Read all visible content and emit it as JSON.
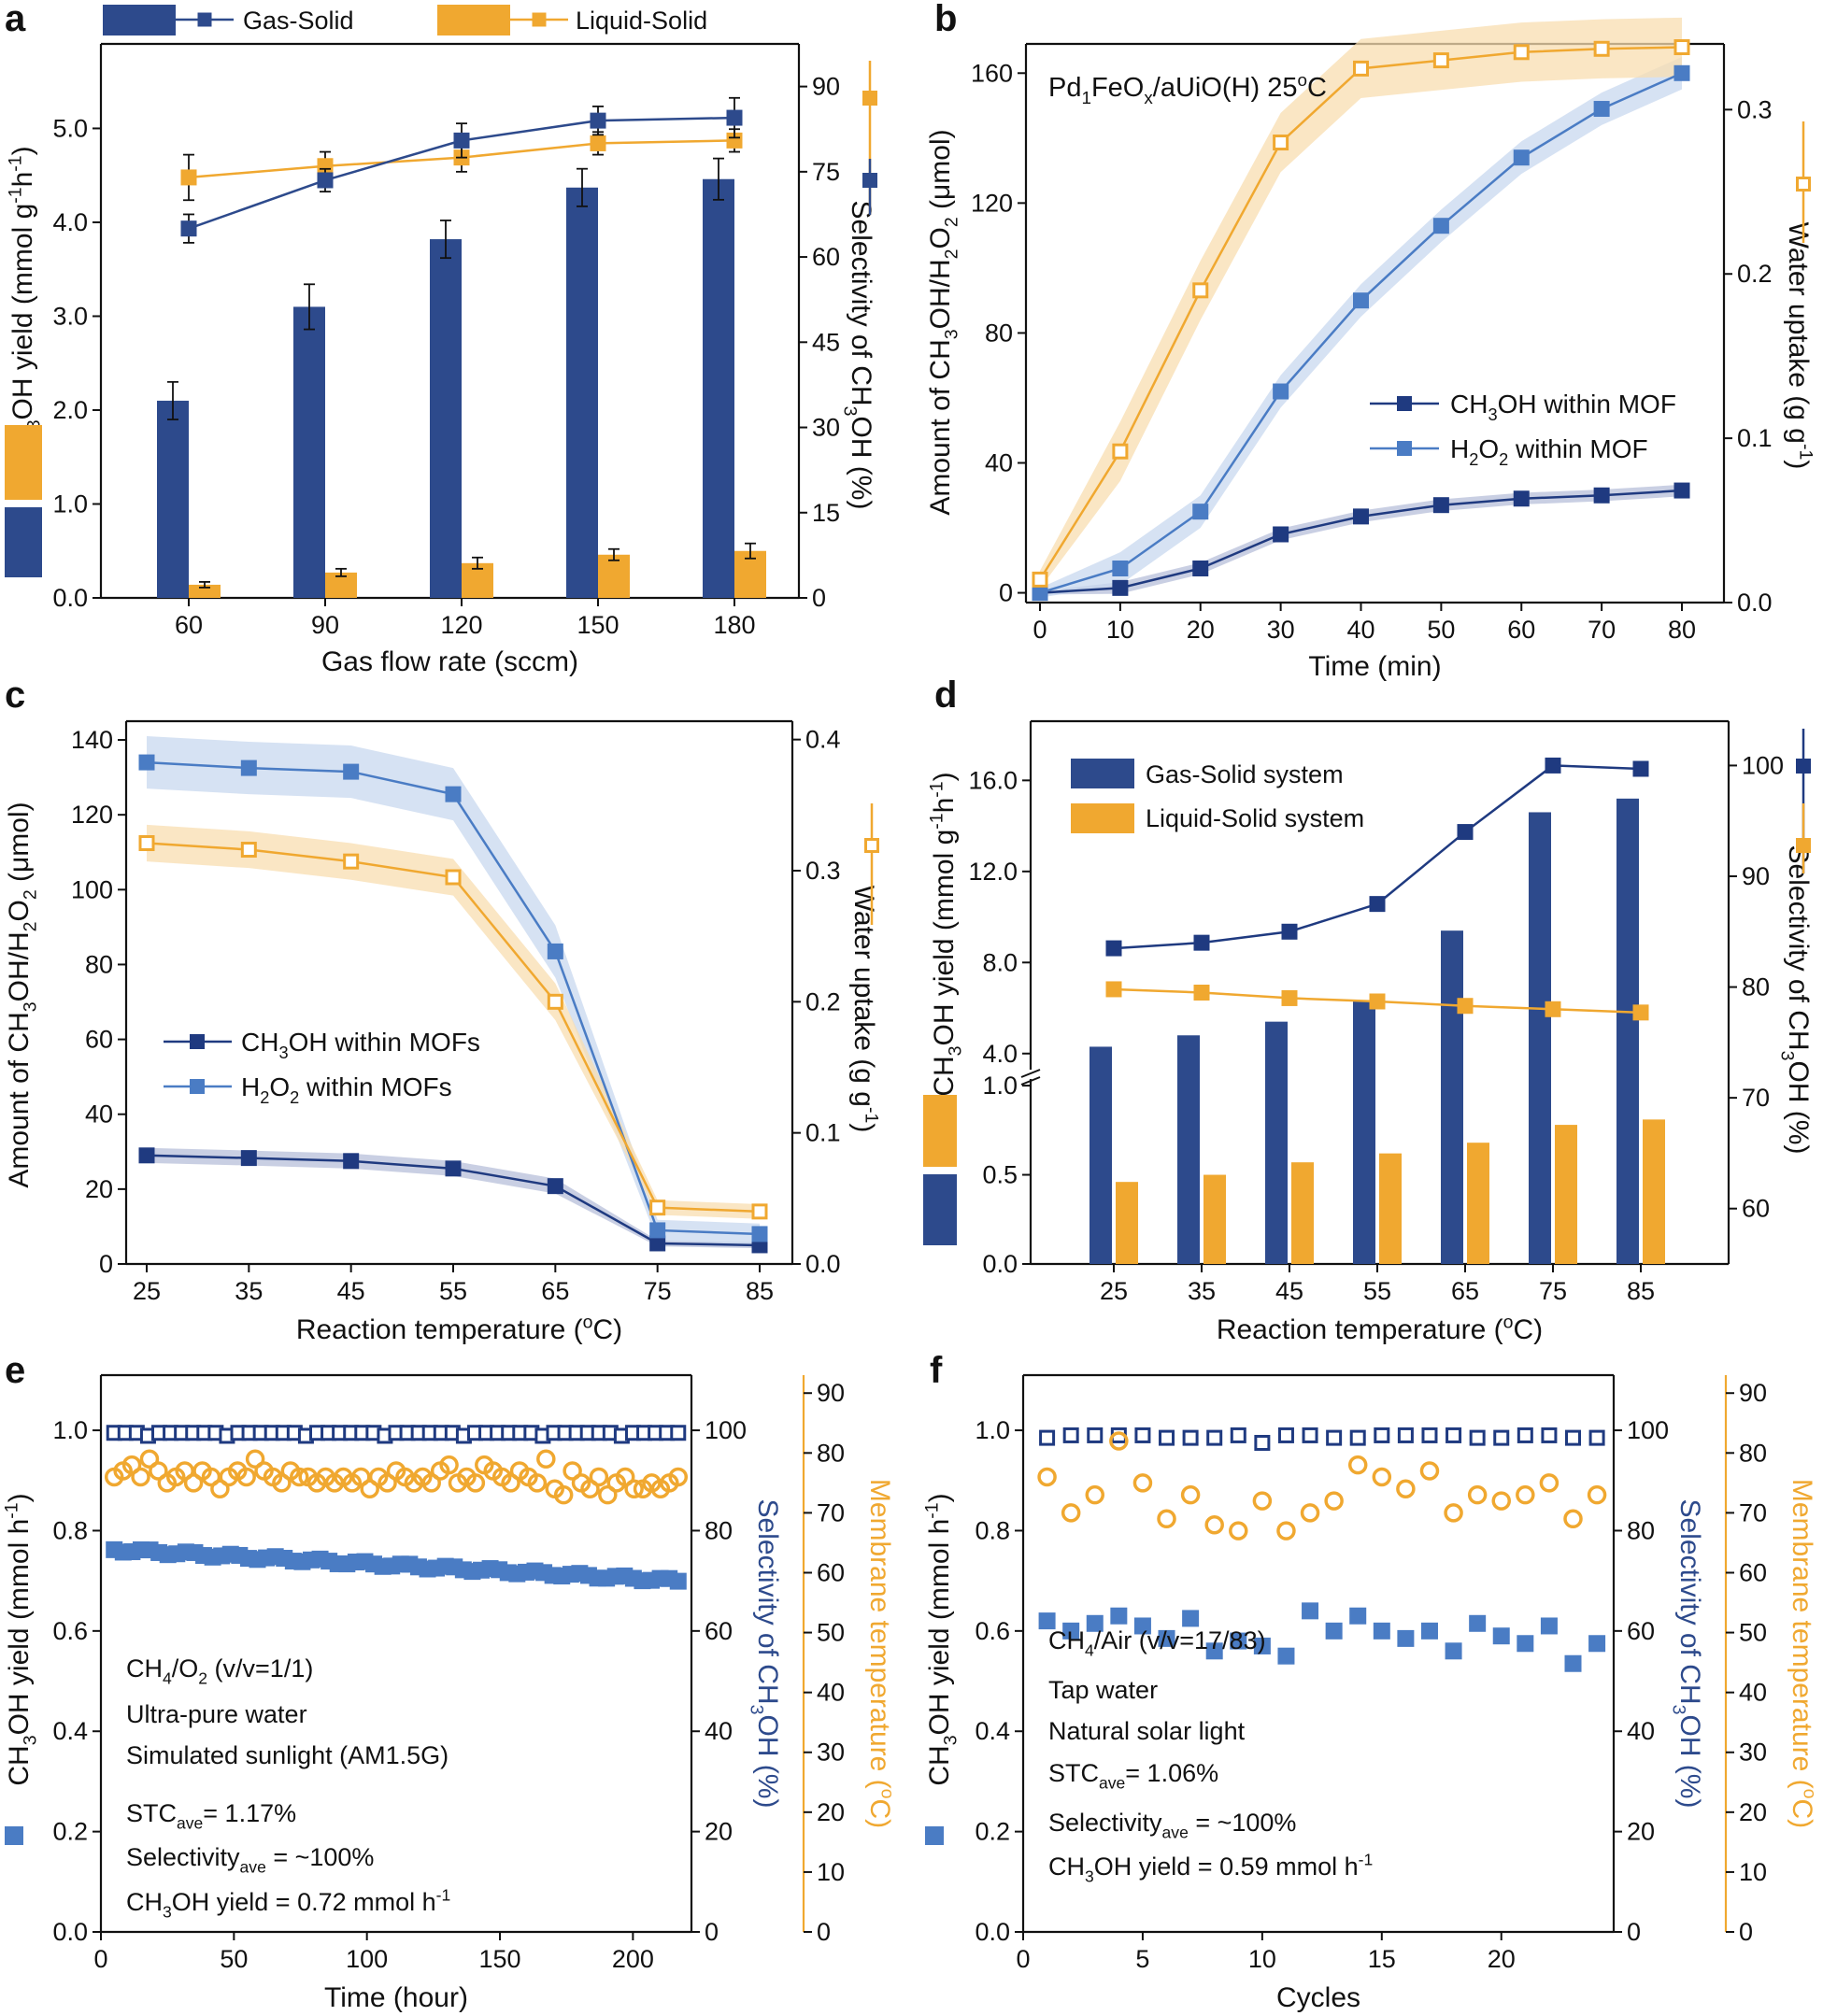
{
  "colors": {
    "navy": "#2d4a8c",
    "navy_dark": "#1f3a80",
    "blue": "#4a7cc4",
    "blue_band": "#c8d8ef",
    "orange": "#f0a830",
    "orange_band": "#f8ddb0"
  },
  "chart_data": [
    {
      "panel": "a",
      "type": "bar+line",
      "legend": [
        "Gas-Solid",
        "Liquid-Solid"
      ],
      "xlabel": "Gas flow rate (sccm)",
      "ylabel": [
        "CH",
        "3",
        "OH yield (mmol g",
        "-1",
        "h",
        "-1",
        ")"
      ],
      "y2label": [
        "Selectivity of CH",
        "3",
        "OH (%)"
      ],
      "categories": [
        "60",
        "90",
        "120",
        "150",
        "180"
      ],
      "ylim": [
        0,
        5.9
      ],
      "yticks": [
        "0.0",
        "1.0",
        "2.0",
        "3.0",
        "4.0",
        "5.0"
      ],
      "y2lim": [
        0,
        97.5
      ],
      "y2ticks": [
        "0",
        "15",
        "30",
        "45",
        "60",
        "75",
        "90"
      ],
      "series": [
        {
          "name": "Gas-Solid yield",
          "kind": "bar",
          "values": [
            2.1,
            3.1,
            3.82,
            4.37,
            4.46
          ],
          "err": [
            0.2,
            0.24,
            0.2,
            0.2,
            0.22
          ]
        },
        {
          "name": "Liquid-Solid yield",
          "kind": "bar",
          "values": [
            0.14,
            0.27,
            0.37,
            0.46,
            0.5
          ],
          "err": [
            0.03,
            0.04,
            0.06,
            0.06,
            0.08
          ]
        },
        {
          "name": "Gas-Solid selectivity",
          "kind": "line",
          "values": [
            65,
            73.5,
            80.5,
            84,
            84.5
          ],
          "err": [
            2.5,
            2,
            3,
            2.5,
            3.5
          ]
        },
        {
          "name": "Liquid-Solid selectivity",
          "kind": "line",
          "values": [
            74,
            76,
            77.5,
            80,
            80.5
          ],
          "err": [
            4,
            2.5,
            2.5,
            2,
            2
          ]
        }
      ]
    },
    {
      "panel": "b",
      "type": "line",
      "annotation": "Pd1FeOx/aUiO(H)  25°C",
      "xlabel": "Time (min)",
      "ylabel": [
        "Amount of CH",
        "3",
        "OH/H",
        "2",
        "O",
        "2",
        " (μmol)"
      ],
      "y2label": [
        "Water uptake (g g",
        "-1",
        ")"
      ],
      "x": [
        0,
        10,
        20,
        30,
        40,
        50,
        60,
        70,
        80
      ],
      "xticks": [
        "0",
        "10",
        "20",
        "30",
        "40",
        "50",
        "60",
        "70",
        "80"
      ],
      "ylim": [
        -3,
        169
      ],
      "yticks": [
        "0",
        "40",
        "80",
        "120",
        "160"
      ],
      "y2lim": [
        0,
        0.34
      ],
      "y2ticks": [
        "0.0",
        "0.1",
        "0.2",
        "0.3"
      ],
      "legend": [
        "CH3OH within MOF",
        "H2O2 within MOF"
      ],
      "series": [
        {
          "name": "CH3OH within MOF",
          "values": [
            0,
            1.5,
            7.5,
            18,
            23.5,
            27,
            29,
            30,
            31.5
          ],
          "band": 1.8
        },
        {
          "name": "H2O2 within MOF",
          "values": [
            0,
            7.5,
            25,
            62,
            90,
            113,
            134,
            149,
            160
          ],
          "band": 5
        },
        {
          "name": "Water uptake",
          "axis": "y2",
          "values": [
            0.014,
            0.092,
            0.19,
            0.28,
            0.325,
            0.33,
            0.335,
            0.337,
            0.338
          ],
          "band": 0.018
        }
      ]
    },
    {
      "panel": "c",
      "type": "line",
      "xlabel": "Reaction temperature (°C)",
      "ylabel": [
        "Amount of CH",
        "3",
        "OH/H",
        "2",
        "O",
        "2",
        " (μmol)"
      ],
      "y2label": [
        "Water uptake (g g",
        "-1",
        ")"
      ],
      "x": [
        25,
        35,
        45,
        55,
        65,
        75,
        85
      ],
      "xticks": [
        "25",
        "35",
        "45",
        "55",
        "65",
        "75",
        "85"
      ],
      "ylim": [
        0,
        145
      ],
      "yticks": [
        "0",
        "20",
        "40",
        "60",
        "80",
        "100",
        "120",
        "140"
      ],
      "y2lim": [
        0,
        0.414
      ],
      "y2ticks": [
        "0.0",
        "0.1",
        "0.2",
        "0.3",
        "0.4"
      ],
      "legend": [
        "CH3OH within MOFs",
        "H2O2 within MOFs"
      ],
      "series": [
        {
          "name": "CH3OH within MOFs",
          "values": [
            29,
            28.3,
            27.5,
            25.5,
            20.8,
            5.5,
            5
          ],
          "band": 2
        },
        {
          "name": "H2O2 within MOFs",
          "values": [
            134,
            132.5,
            131.5,
            125.5,
            83.5,
            9,
            8
          ],
          "band": 7
        },
        {
          "name": "Water uptake",
          "axis": "y2",
          "values": [
            0.321,
            0.316,
            0.307,
            0.295,
            0.2,
            0.043,
            0.04
          ],
          "band": 0.014
        }
      ]
    },
    {
      "panel": "d",
      "type": "bar+line",
      "legend": [
        "Gas-Solid system",
        "Liquid-Solid system"
      ],
      "xlabel": "Reaction temperature (°C)",
      "ylabel": [
        "CH",
        "3",
        "OH yield (mmol g",
        "-1",
        "h",
        "-1",
        ")"
      ],
      "y2label": [
        "Selectivity of CH",
        "3",
        "OH (%)"
      ],
      "categories": [
        "25",
        "35",
        "45",
        "55",
        "65",
        "75",
        "85"
      ],
      "ylim_lower": [
        0,
        1.1
      ],
      "yticks_lower": [
        "0.0",
        "0.5",
        "1.0"
      ],
      "ylim_upper": [
        2.8,
        18.6
      ],
      "yticks_upper": [
        "4.0",
        "8.0",
        "12.0",
        "16.0"
      ],
      "y2lim": [
        55,
        104
      ],
      "y2ticks": [
        "60",
        "70",
        "80",
        "90",
        "100"
      ],
      "series": [
        {
          "name": "Gas-Solid yield",
          "kind": "bar",
          "values": [
            4.3,
            4.8,
            5.4,
            6.3,
            9.4,
            14.6,
            15.2
          ]
        },
        {
          "name": "Liquid-Solid yield",
          "kind": "bar",
          "values": [
            0.46,
            0.5,
            0.57,
            0.62,
            0.68,
            0.78,
            0.81
          ]
        },
        {
          "name": "Gas-Solid selectivity",
          "kind": "line",
          "values": [
            83.5,
            84,
            85,
            87.5,
            94,
            100,
            99.7
          ]
        },
        {
          "name": "Liquid-Solid selectivity",
          "kind": "line",
          "values": [
            79.8,
            79.5,
            79,
            78.7,
            78.3,
            78,
            77.7
          ]
        }
      ]
    },
    {
      "panel": "e",
      "type": "scatter",
      "xlabel": "Time (hour)",
      "ylabel": [
        "CH",
        "3",
        "OH yield (mmol h",
        "-1",
        ")"
      ],
      "y2label": [
        "Selectivity of CH",
        "3",
        "OH (%)"
      ],
      "y3label": [
        "Membrane temperature (",
        "o",
        "C)"
      ],
      "xlim": [
        0,
        222
      ],
      "xticks": [
        "0",
        "50",
        "100",
        "150",
        "200"
      ],
      "ylim": [
        0,
        1.11
      ],
      "yticks": [
        "0.0",
        "0.2",
        "0.4",
        "0.6",
        "0.8",
        "1.0"
      ],
      "y2lim": [
        0,
        111
      ],
      "y2ticks": [
        "0",
        "20",
        "40",
        "60",
        "80",
        "100"
      ],
      "y3lim": [
        0,
        93
      ],
      "y3ticks": [
        "0",
        "10",
        "20",
        "30",
        "40",
        "50",
        "60",
        "70",
        "80",
        "90"
      ],
      "notes": [
        [
          "CH",
          "4",
          "/O",
          "2",
          " (v/v=1/1)"
        ],
        [
          "Ultra-pure water"
        ],
        [
          "Simulated sunlight (AM1.5G)"
        ],
        [
          "STC",
          "ave",
          "= 1.17%"
        ],
        [
          "Selectivity",
          "ave",
          " = ~100%"
        ],
        [
          "CH",
          "3",
          "OH yield = 0.72 mmol h",
          "-1"
        ]
      ],
      "yield": {
        "x_start": 5,
        "x_end": 217,
        "n": 64,
        "start": 0.762,
        "end": 0.7
      },
      "selectivity": {
        "x_start": 5,
        "x_end": 217,
        "n": 51,
        "value": 99.5
      },
      "temperature": {
        "x_start": 5,
        "x_end": 217,
        "values": [
          76,
          77,
          78,
          76,
          79,
          77,
          75,
          76,
          77,
          75,
          77,
          76,
          74,
          76,
          77,
          76,
          79,
          77,
          76,
          75,
          77,
          76,
          76,
          75,
          76,
          75,
          76,
          75,
          76,
          74,
          76,
          75,
          77,
          76,
          75,
          76,
          75,
          77,
          78,
          75,
          76,
          75,
          78,
          77,
          76,
          75,
          77,
          76,
          75,
          79,
          74,
          73,
          77,
          75,
          74,
          76,
          73,
          75,
          76,
          74,
          74,
          75,
          74,
          75,
          76
        ]
      }
    },
    {
      "panel": "f",
      "type": "scatter",
      "xlabel": "Cycles",
      "ylabel": [
        "CH",
        "3",
        "OH yield (mmol h",
        "-1",
        ")"
      ],
      "y2label": [
        "Selectivity of CH",
        "3",
        "OH (%)"
      ],
      "y3label": [
        "Membrane temperature (",
        "o",
        "C)"
      ],
      "xlim": [
        0,
        24.7
      ],
      "xticks": [
        "0",
        "5",
        "10",
        "15",
        "20"
      ],
      "ylim": [
        0,
        1.11
      ],
      "yticks": [
        "0.0",
        "0.2",
        "0.4",
        "0.6",
        "0.8",
        "1.0"
      ],
      "y2lim": [
        0,
        111
      ],
      "y2ticks": [
        "0",
        "20",
        "40",
        "60",
        "80",
        "100"
      ],
      "y3lim": [
        0,
        93
      ],
      "y3ticks": [
        "0",
        "10",
        "20",
        "30",
        "40",
        "50",
        "60",
        "70",
        "80",
        "90"
      ],
      "notes": [
        [
          "CH",
          "4",
          "/Air (v/v=17/83)"
        ],
        [
          "Tap water"
        ],
        [
          "Natural solar light"
        ],
        [
          "STC",
          "ave",
          "= 1.06%"
        ],
        [
          "Selectivity",
          "ave",
          " = ~100%"
        ],
        [
          "CH",
          "3",
          "OH yield = 0.59 mmol h",
          "-1"
        ]
      ],
      "x": [
        1,
        2,
        3,
        4,
        5,
        6,
        7,
        8,
        9,
        10,
        11,
        12,
        13,
        14,
        15,
        16,
        17,
        18,
        19,
        20,
        21,
        22,
        23,
        24
      ],
      "yield": [
        0.62,
        0.6,
        0.615,
        0.63,
        0.61,
        0.585,
        0.625,
        0.56,
        0.58,
        0.57,
        0.55,
        0.64,
        0.6,
        0.63,
        0.6,
        0.585,
        0.6,
        0.56,
        0.615,
        0.59,
        0.575,
        0.61,
        0.535,
        0.575
      ],
      "selectivity": [
        98.5,
        99,
        99,
        99,
        99,
        98.5,
        98.5,
        98.5,
        99,
        97.5,
        99,
        99,
        98.5,
        98.5,
        99,
        99,
        99,
        99,
        98.5,
        98.5,
        99,
        99,
        98.5,
        98.5
      ],
      "temperature": [
        76,
        70,
        73,
        82,
        75,
        69,
        73,
        68,
        67,
        72,
        67,
        70,
        72,
        78,
        76,
        74,
        77,
        70,
        73,
        72,
        73,
        75,
        69,
        73
      ]
    }
  ]
}
